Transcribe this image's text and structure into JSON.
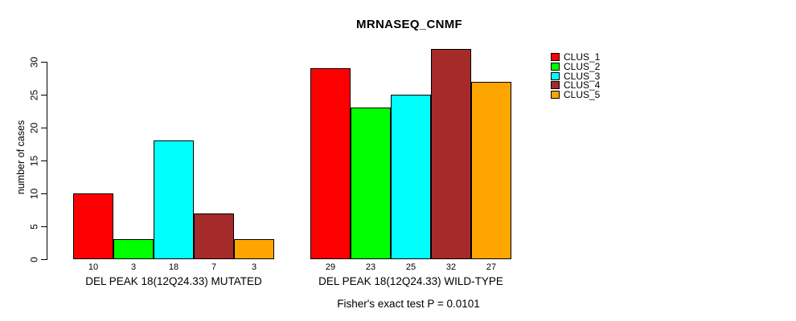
{
  "title": "MRNASEQ_CNMF",
  "annotation": "Fisher's exact test P = 0.0101",
  "chart_data": {
    "type": "bar",
    "title": "MRNASEQ_CNMF",
    "xlabel": "",
    "ylabel": "number of cases",
    "ylim": [
      0,
      30
    ],
    "yticks": [
      0,
      5,
      10,
      15,
      20,
      25,
      30
    ],
    "grid": false,
    "legend_position": "right",
    "series_names": [
      "CLUS_1",
      "CLUS_2",
      "CLUS_3",
      "CLUS_4",
      "CLUS_5"
    ],
    "colors": [
      "#FF0000",
      "#00FF00",
      "#00FFFF",
      "#A52A2A",
      "#FFA500"
    ],
    "groups": [
      {
        "label": "DEL PEAK 18(12Q24.33) MUTATED",
        "values": [
          10,
          3,
          18,
          7,
          3
        ],
        "bar_value_labels": [
          "10",
          "3",
          "18",
          "7",
          "3"
        ]
      },
      {
        "label": "DEL PEAK 18(12Q24.33) WILD-TYPE",
        "values": [
          29,
          23,
          25,
          32,
          27
        ],
        "bar_value_labels": [
          "29",
          "23",
          "25",
          "32",
          "27"
        ]
      }
    ],
    "annotation": "Fisher's exact test P = 0.0101"
  }
}
